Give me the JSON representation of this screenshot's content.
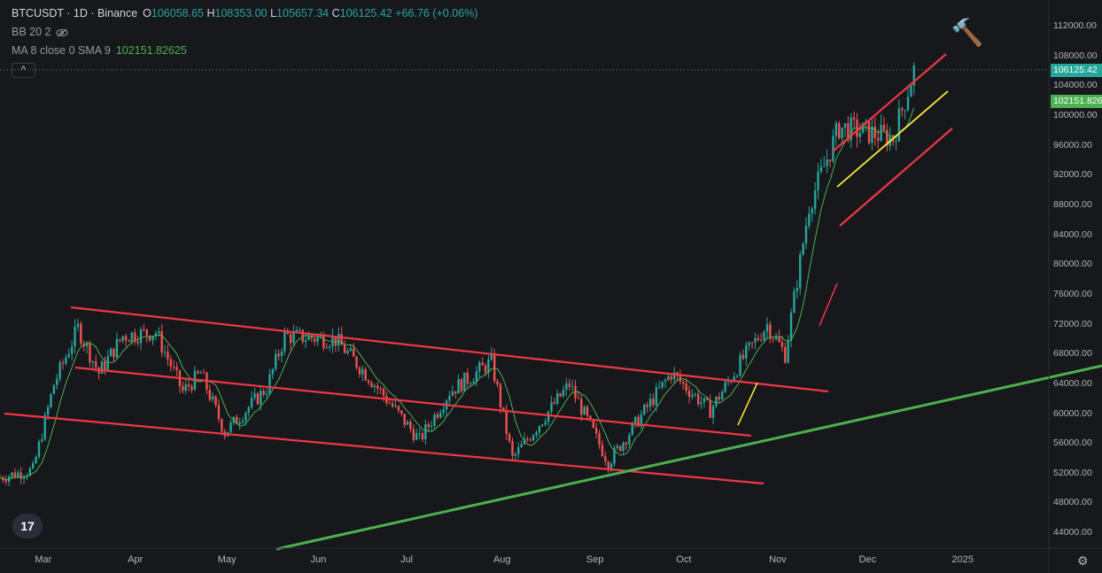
{
  "legend": {
    "symbol": "BTCUSDT · 1D · Binance",
    "open_label": "O",
    "open": "106058.65",
    "high_label": "H",
    "high": "108353.00",
    "low_label": "L",
    "low": "105657.34",
    "close_label": "C",
    "close": "106125.42",
    "change": "+66.76 (+0.06%)",
    "bb": "BB 20 2",
    "ma": "MA 8 close 0 SMA 9",
    "ma_value": "102151.82625",
    "collapse_symbol": "^"
  },
  "price_axis": [
    "112000.00",
    "108000.00",
    "104000.00",
    "100000.00",
    "96000.00",
    "92000.00",
    "88000.00",
    "84000.00",
    "80000.00",
    "76000.00",
    "72000.00",
    "68000.00",
    "64000.00",
    "60000.00",
    "56000.00",
    "52000.00",
    "48000.00",
    "44000.00"
  ],
  "price_tags": {
    "last": "106125.42",
    "ma": "102151.826"
  },
  "time_axis": [
    "Mar",
    "Apr",
    "May",
    "Jun",
    "Jul",
    "Aug",
    "Sep",
    "Oct",
    "Nov",
    "Dec",
    "2025"
  ],
  "colors": {
    "up": "#26a69a",
    "down": "#ef5350",
    "channel": "#f23645",
    "support": "#4caf50",
    "trend": "#ffeb3b",
    "ma": "#4caf50"
  },
  "icons": [
    "eye-off-icon",
    "hammer-icon",
    "tradingview-logo-icon",
    "gear-icon"
  ],
  "logo_text": "17",
  "hammer_glyph": "🔨",
  "gear_glyph": "⚙",
  "chart_data": {
    "type": "candlestick",
    "title": "BTCUSDT · 1D · Binance",
    "ylim": [
      42000,
      114000
    ],
    "x_range": [
      "2024-02-16",
      "2025-01-31"
    ],
    "x": [
      "2024-02-16",
      "2024-02-27",
      "2024-03-05",
      "2024-03-13",
      "2024-03-20",
      "2024-03-28",
      "2024-04-08",
      "2024-04-17",
      "2024-04-23",
      "2024-05-01",
      "2024-05-15",
      "2024-05-21",
      "2024-06-07",
      "2024-06-18",
      "2024-07-05",
      "2024-07-15",
      "2024-07-29",
      "2024-08-05",
      "2024-08-24",
      "2024-09-06",
      "2024-09-27",
      "2024-10-10",
      "2024-10-21",
      "2024-10-29",
      "2024-11-04",
      "2024-11-12",
      "2024-11-22",
      "2024-12-05",
      "2024-12-10",
      "2024-12-17"
    ],
    "close": [
      51500,
      52500,
      64000,
      71500,
      65500,
      70500,
      71000,
      63000,
      65500,
      57500,
      63500,
      70500,
      70000,
      65000,
      56500,
      63000,
      67000,
      54000,
      64000,
      53500,
      65500,
      60500,
      67500,
      72000,
      68000,
      88000,
      98500,
      97500,
      97000,
      106125
    ],
    "ma_value": 102151.82625
  }
}
